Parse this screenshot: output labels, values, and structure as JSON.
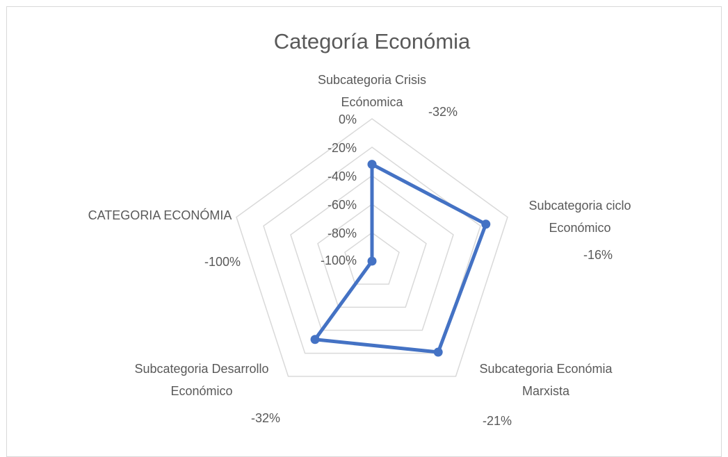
{
  "chart_data": {
    "type": "radar",
    "title": "Categoría Económia",
    "categories": [
      "Subcategoria Crisis Ecónomica",
      "Subcategoria ciclo Económico",
      "Subcategoria Económia Marxista",
      "Subcategoria Desarrollo Económico",
      "CATEGORIA ECONÓMIA"
    ],
    "values": [
      -32,
      -16,
      -21,
      -32,
      -100
    ],
    "value_labels": [
      "-32%",
      "-16%",
      "-21%",
      "-32%",
      "-100%"
    ],
    "color": "#4472c4",
    "rlim": [
      -100,
      0
    ],
    "rticks": [
      {
        "value": 0,
        "label": "0%"
      },
      {
        "value": -20,
        "label": "-20%"
      },
      {
        "value": -40,
        "label": "-40%"
      },
      {
        "value": -60,
        "label": "-60%"
      },
      {
        "value": -80,
        "label": "-80%"
      },
      {
        "value": -100,
        "label": "-100%"
      }
    ],
    "grid": true
  }
}
